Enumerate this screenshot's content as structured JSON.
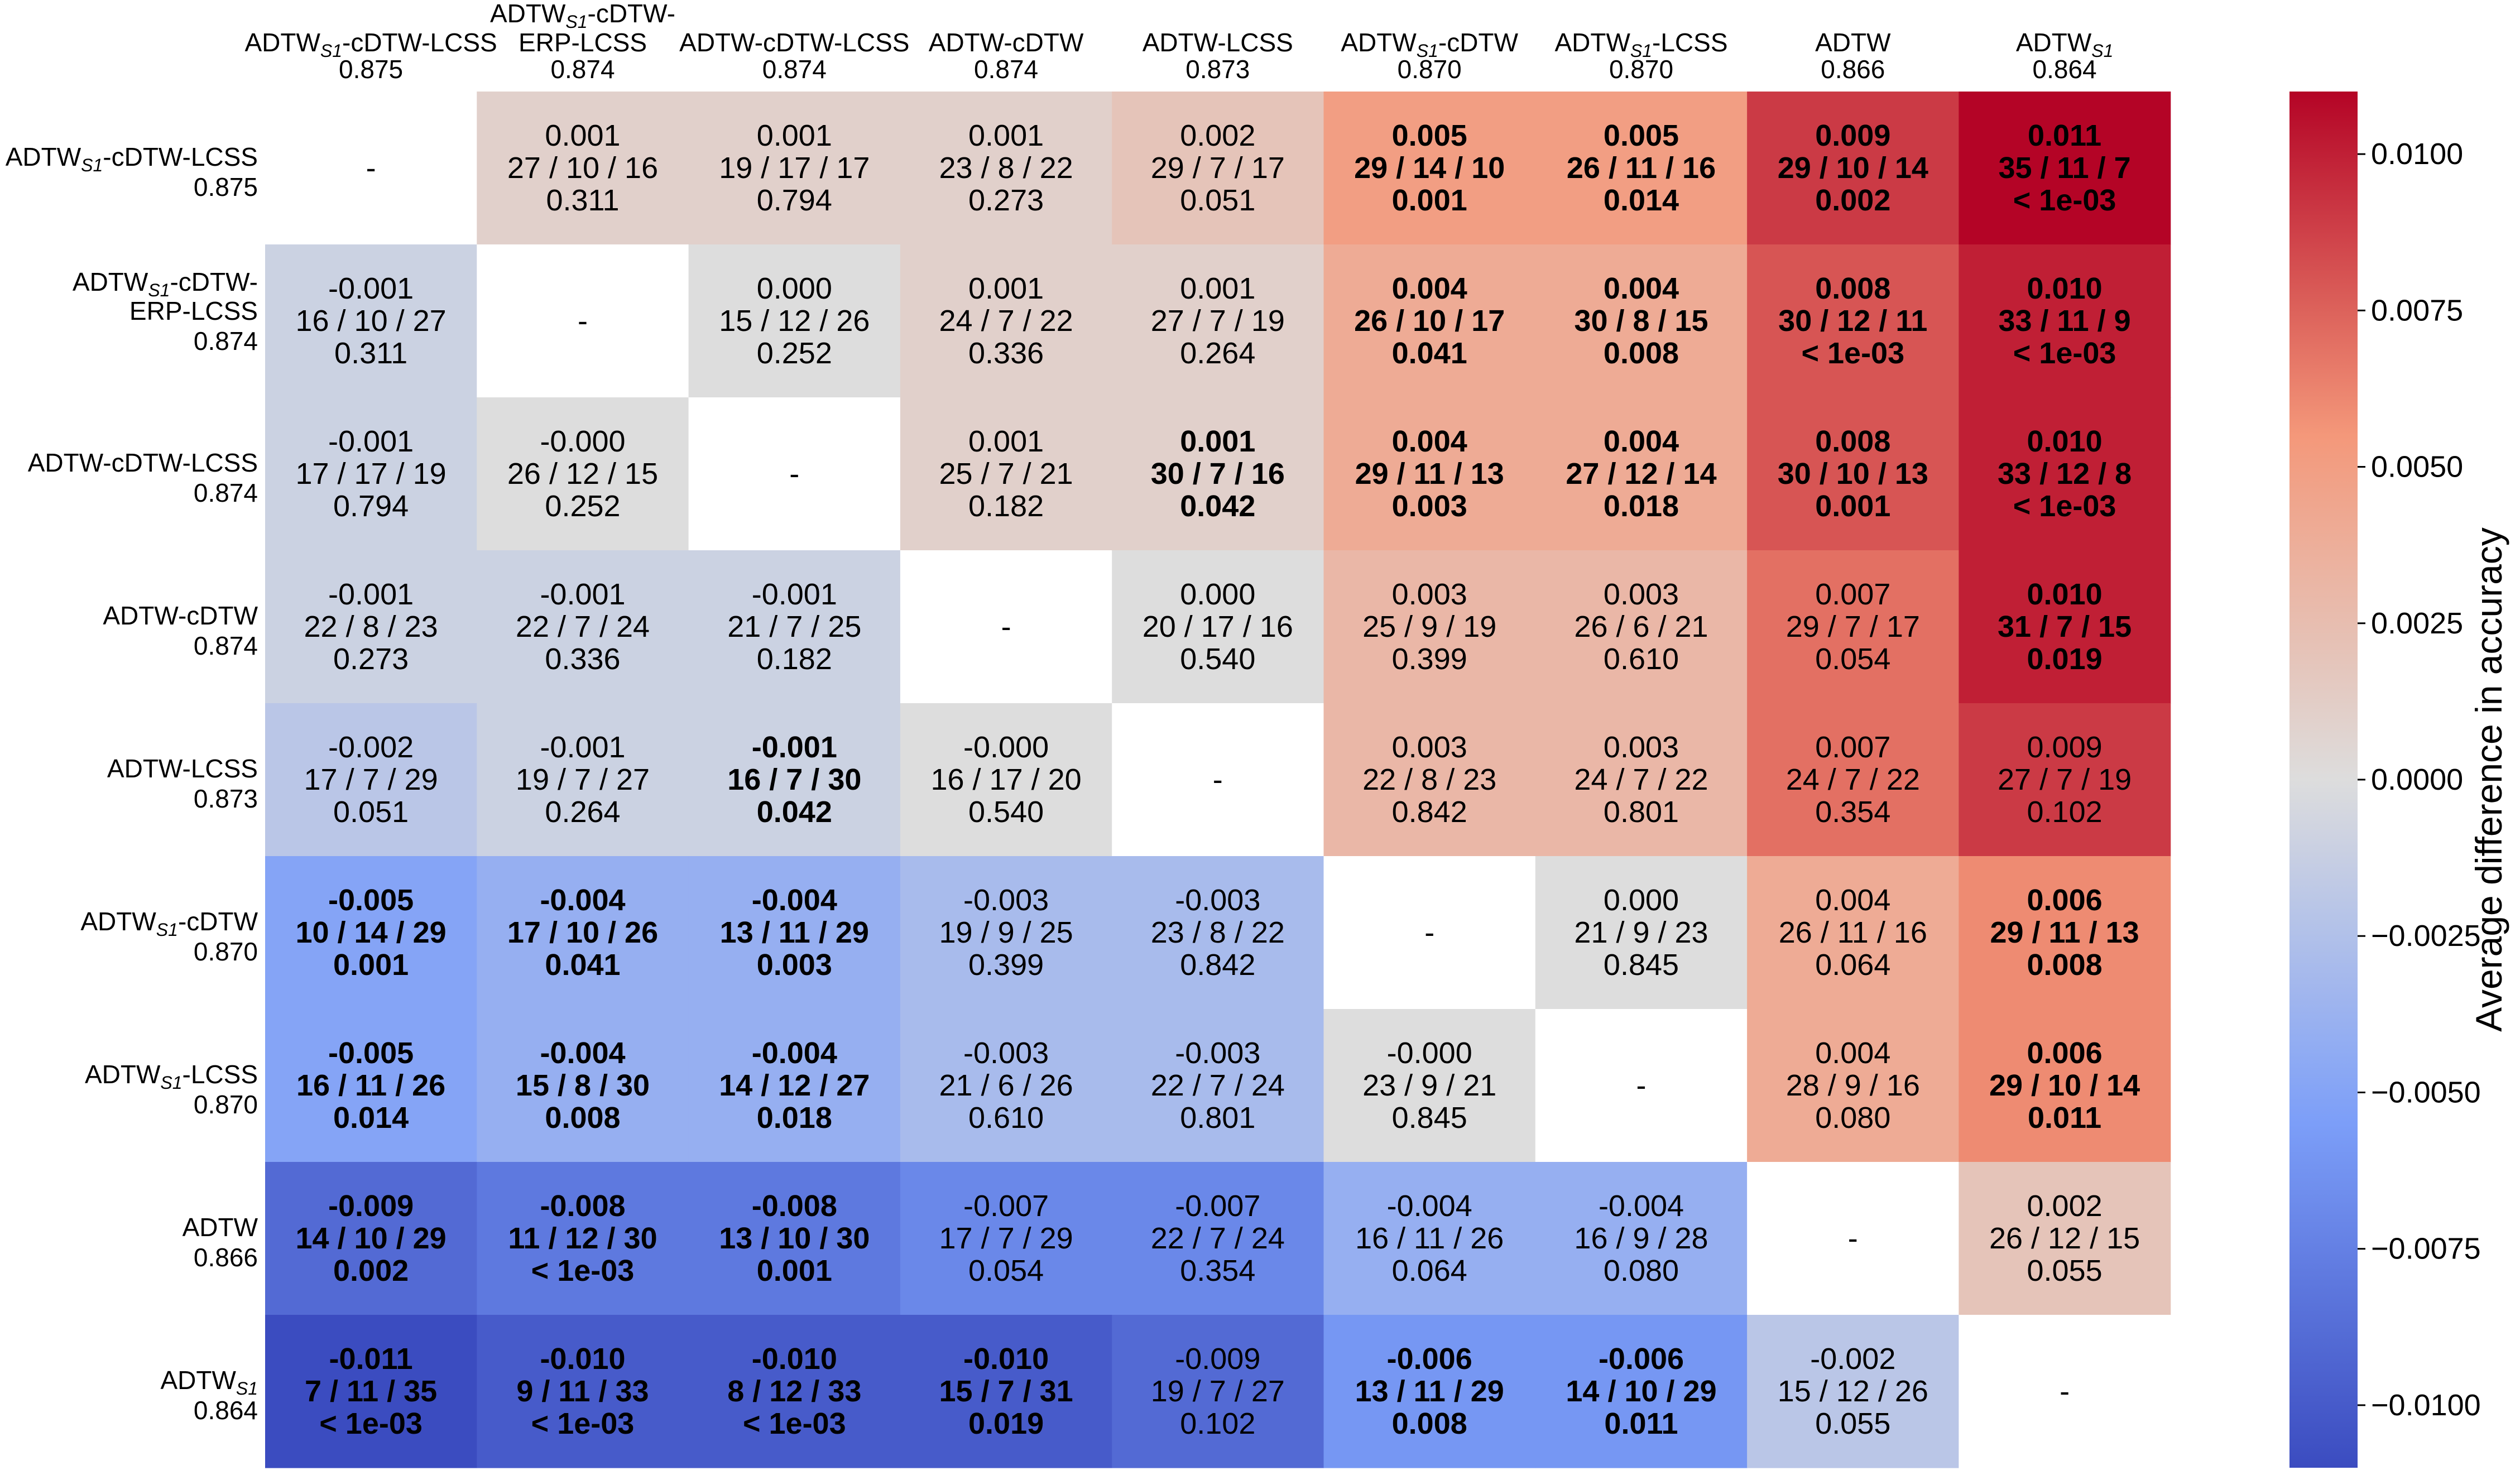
{
  "chart_data": {
    "type": "heatmap",
    "colorbar": {
      "label": "Average difference in accuracy",
      "range": [
        -0.011,
        0.011
      ],
      "ticks": [
        0.01,
        0.0075,
        0.005,
        0.0025,
        0.0,
        -0.0025,
        -0.005,
        -0.0075,
        -0.01
      ],
      "tick_labels": [
        "0.0100",
        "0.0075",
        "0.0050",
        "0.0025",
        "0.0000",
        "−0.0025",
        "−0.0050",
        "−0.0075",
        "−0.0100"
      ],
      "colormap": "coolwarm",
      "colors": {
        "low": "#3b4cc0",
        "mid": "#dddddd",
        "high": "#b40426"
      }
    },
    "columns": [
      {
        "name_lines": [
          [
            "ADTW",
            "S1",
            "-cDTW-LCSS"
          ]
        ],
        "score": "0.875"
      },
      {
        "name_lines": [
          [
            "ADTW",
            "S1",
            "-cDTW-"
          ],
          [
            "ERP-LCSS"
          ]
        ],
        "score": "0.874"
      },
      {
        "name_lines": [
          [
            "ADTW-cDTW-LCSS"
          ]
        ],
        "score": "0.874"
      },
      {
        "name_lines": [
          [
            "ADTW-cDTW"
          ]
        ],
        "score": "0.874"
      },
      {
        "name_lines": [
          [
            "ADTW-LCSS"
          ]
        ],
        "score": "0.873"
      },
      {
        "name_lines": [
          [
            "ADTW",
            "S1",
            "-cDTW"
          ]
        ],
        "score": "0.870"
      },
      {
        "name_lines": [
          [
            "ADTW",
            "S1",
            "-LCSS"
          ]
        ],
        "score": "0.870"
      },
      {
        "name_lines": [
          [
            "ADTW"
          ]
        ],
        "score": "0.866"
      },
      {
        "name_lines": [
          [
            "ADTW",
            "S1",
            ""
          ]
        ],
        "score": "0.864"
      }
    ],
    "rows": [
      {
        "name_lines": [
          [
            "ADTW",
            "S1",
            "-cDTW-LCSS"
          ]
        ],
        "score": "0.875"
      },
      {
        "name_lines": [
          [
            "ADTW",
            "S1",
            "-cDTW-"
          ],
          [
            "ERP-LCSS"
          ]
        ],
        "score": "0.874"
      },
      {
        "name_lines": [
          [
            "ADTW-cDTW-LCSS"
          ]
        ],
        "score": "0.874"
      },
      {
        "name_lines": [
          [
            "ADTW-cDTW"
          ]
        ],
        "score": "0.874"
      },
      {
        "name_lines": [
          [
            "ADTW-LCSS"
          ]
        ],
        "score": "0.873"
      },
      {
        "name_lines": [
          [
            "ADTW",
            "S1",
            "-cDTW"
          ]
        ],
        "score": "0.870"
      },
      {
        "name_lines": [
          [
            "ADTW",
            "S1",
            "-LCSS"
          ]
        ],
        "score": "0.870"
      },
      {
        "name_lines": [
          [
            "ADTW"
          ]
        ],
        "score": "0.866"
      },
      {
        "name_lines": [
          [
            "ADTW",
            "S1",
            ""
          ]
        ],
        "score": "0.864"
      }
    ],
    "cells": [
      [
        {
          "empty": true,
          "text": "-"
        },
        {
          "v": 0.001,
          "lines": [
            "0.001",
            "27 / 10 / 16",
            "0.311"
          ],
          "bold": false
        },
        {
          "v": 0.001,
          "lines": [
            "0.001",
            "19 / 17 / 17",
            "0.794"
          ],
          "bold": false
        },
        {
          "v": 0.001,
          "lines": [
            "0.001",
            "23 / 8 / 22",
            "0.273"
          ],
          "bold": false
        },
        {
          "v": 0.002,
          "lines": [
            "0.002",
            "29 / 7 / 17",
            "0.051"
          ],
          "bold": false
        },
        {
          "v": 0.005,
          "lines": [
            "0.005",
            "29 / 14 / 10",
            "0.001"
          ],
          "bold": true
        },
        {
          "v": 0.005,
          "lines": [
            "0.005",
            "26 / 11 / 16",
            "0.014"
          ],
          "bold": true
        },
        {
          "v": 0.009,
          "lines": [
            "0.009",
            "29 / 10 / 14",
            "0.002"
          ],
          "bold": true
        },
        {
          "v": 0.011,
          "lines": [
            "0.011",
            "35 / 11 / 7",
            "< 1e-03"
          ],
          "bold": true
        }
      ],
      [
        {
          "v": -0.001,
          "lines": [
            "-0.001",
            "16 / 10 / 27",
            "0.311"
          ],
          "bold": false
        },
        {
          "empty": true,
          "text": "-"
        },
        {
          "v": 0.0,
          "lines": [
            "0.000",
            "15 / 12 / 26",
            "0.252"
          ],
          "bold": false
        },
        {
          "v": 0.001,
          "lines": [
            "0.001",
            "24 / 7 / 22",
            "0.336"
          ],
          "bold": false
        },
        {
          "v": 0.001,
          "lines": [
            "0.001",
            "27 / 7 / 19",
            "0.264"
          ],
          "bold": false
        },
        {
          "v": 0.004,
          "lines": [
            "0.004",
            "26 / 10 / 17",
            "0.041"
          ],
          "bold": true
        },
        {
          "v": 0.004,
          "lines": [
            "0.004",
            "30 / 8 / 15",
            "0.008"
          ],
          "bold": true
        },
        {
          "v": 0.008,
          "lines": [
            "0.008",
            "30 / 12 / 11",
            "< 1e-03"
          ],
          "bold": true
        },
        {
          "v": 0.01,
          "lines": [
            "0.010",
            "33 / 11 / 9",
            "< 1e-03"
          ],
          "bold": true
        }
      ],
      [
        {
          "v": -0.001,
          "lines": [
            "-0.001",
            "17 / 17 / 19",
            "0.794"
          ],
          "bold": false
        },
        {
          "v": -0.0,
          "lines": [
            "-0.000",
            "26 / 12 / 15",
            "0.252"
          ],
          "bold": false
        },
        {
          "empty": true,
          "text": "-"
        },
        {
          "v": 0.001,
          "lines": [
            "0.001",
            "25 / 7 / 21",
            "0.182"
          ],
          "bold": false
        },
        {
          "v": 0.001,
          "lines": [
            "0.001",
            "30 / 7 / 16",
            "0.042"
          ],
          "bold": true
        },
        {
          "v": 0.004,
          "lines": [
            "0.004",
            "29 / 11 / 13",
            "0.003"
          ],
          "bold": true
        },
        {
          "v": 0.004,
          "lines": [
            "0.004",
            "27 / 12 / 14",
            "0.018"
          ],
          "bold": true
        },
        {
          "v": 0.008,
          "lines": [
            "0.008",
            "30 / 10 / 13",
            "0.001"
          ],
          "bold": true
        },
        {
          "v": 0.01,
          "lines": [
            "0.010",
            "33 / 12 / 8",
            "< 1e-03"
          ],
          "bold": true
        }
      ],
      [
        {
          "v": -0.001,
          "lines": [
            "-0.001",
            "22 / 8 / 23",
            "0.273"
          ],
          "bold": false
        },
        {
          "v": -0.001,
          "lines": [
            "-0.001",
            "22 / 7 / 24",
            "0.336"
          ],
          "bold": false
        },
        {
          "v": -0.001,
          "lines": [
            "-0.001",
            "21 / 7 / 25",
            "0.182"
          ],
          "bold": false
        },
        {
          "empty": true,
          "text": "-"
        },
        {
          "v": 0.0,
          "lines": [
            "0.000",
            "20 / 17 / 16",
            "0.540"
          ],
          "bold": false
        },
        {
          "v": 0.003,
          "lines": [
            "0.003",
            "25 / 9 / 19",
            "0.399"
          ],
          "bold": false
        },
        {
          "v": 0.003,
          "lines": [
            "0.003",
            "26 / 6 / 21",
            "0.610"
          ],
          "bold": false
        },
        {
          "v": 0.007,
          "lines": [
            "0.007",
            "29 / 7 / 17",
            "0.054"
          ],
          "bold": false
        },
        {
          "v": 0.01,
          "lines": [
            "0.010",
            "31 / 7 / 15",
            "0.019"
          ],
          "bold": true
        }
      ],
      [
        {
          "v": -0.002,
          "lines": [
            "-0.002",
            "17 / 7 / 29",
            "0.051"
          ],
          "bold": false
        },
        {
          "v": -0.001,
          "lines": [
            "-0.001",
            "19 / 7 / 27",
            "0.264"
          ],
          "bold": false
        },
        {
          "v": -0.001,
          "lines": [
            "-0.001",
            "16 / 7 / 30",
            "0.042"
          ],
          "bold": true
        },
        {
          "v": -0.0,
          "lines": [
            "-0.000",
            "16 / 17 / 20",
            "0.540"
          ],
          "bold": false
        },
        {
          "empty": true,
          "text": "-"
        },
        {
          "v": 0.003,
          "lines": [
            "0.003",
            "22 / 8 / 23",
            "0.842"
          ],
          "bold": false
        },
        {
          "v": 0.003,
          "lines": [
            "0.003",
            "24 / 7 / 22",
            "0.801"
          ],
          "bold": false
        },
        {
          "v": 0.007,
          "lines": [
            "0.007",
            "24 / 7 / 22",
            "0.354"
          ],
          "bold": false
        },
        {
          "v": 0.009,
          "lines": [
            "0.009",
            "27 / 7 / 19",
            "0.102"
          ],
          "bold": false
        }
      ],
      [
        {
          "v": -0.005,
          "lines": [
            "-0.005",
            "10 / 14 / 29",
            "0.001"
          ],
          "bold": true
        },
        {
          "v": -0.004,
          "lines": [
            "-0.004",
            "17 / 10 / 26",
            "0.041"
          ],
          "bold": true
        },
        {
          "v": -0.004,
          "lines": [
            "-0.004",
            "13 / 11 / 29",
            "0.003"
          ],
          "bold": true
        },
        {
          "v": -0.003,
          "lines": [
            "-0.003",
            "19 / 9 / 25",
            "0.399"
          ],
          "bold": false
        },
        {
          "v": -0.003,
          "lines": [
            "-0.003",
            "23 / 8 / 22",
            "0.842"
          ],
          "bold": false
        },
        {
          "empty": true,
          "text": "-"
        },
        {
          "v": 0.0,
          "lines": [
            "0.000",
            "21 / 9 / 23",
            "0.845"
          ],
          "bold": false
        },
        {
          "v": 0.004,
          "lines": [
            "0.004",
            "26 / 11 / 16",
            "0.064"
          ],
          "bold": false
        },
        {
          "v": 0.006,
          "lines": [
            "0.006",
            "29 / 11 / 13",
            "0.008"
          ],
          "bold": true
        }
      ],
      [
        {
          "v": -0.005,
          "lines": [
            "-0.005",
            "16 / 11 / 26",
            "0.014"
          ],
          "bold": true
        },
        {
          "v": -0.004,
          "lines": [
            "-0.004",
            "15 / 8 / 30",
            "0.008"
          ],
          "bold": true
        },
        {
          "v": -0.004,
          "lines": [
            "-0.004",
            "14 / 12 / 27",
            "0.018"
          ],
          "bold": true
        },
        {
          "v": -0.003,
          "lines": [
            "-0.003",
            "21 / 6 / 26",
            "0.610"
          ],
          "bold": false
        },
        {
          "v": -0.003,
          "lines": [
            "-0.003",
            "22 / 7 / 24",
            "0.801"
          ],
          "bold": false
        },
        {
          "v": -0.0,
          "lines": [
            "-0.000",
            "23 / 9 / 21",
            "0.845"
          ],
          "bold": false
        },
        {
          "empty": true,
          "text": "-"
        },
        {
          "v": 0.004,
          "lines": [
            "0.004",
            "28 / 9 / 16",
            "0.080"
          ],
          "bold": false
        },
        {
          "v": 0.006,
          "lines": [
            "0.006",
            "29 / 10 / 14",
            "0.011"
          ],
          "bold": true
        }
      ],
      [
        {
          "v": -0.009,
          "lines": [
            "-0.009",
            "14 / 10 / 29",
            "0.002"
          ],
          "bold": true
        },
        {
          "v": -0.008,
          "lines": [
            "-0.008",
            "11 / 12 / 30",
            "< 1e-03"
          ],
          "bold": true
        },
        {
          "v": -0.008,
          "lines": [
            "-0.008",
            "13 / 10 / 30",
            "0.001"
          ],
          "bold": true
        },
        {
          "v": -0.007,
          "lines": [
            "-0.007",
            "17 / 7 / 29",
            "0.054"
          ],
          "bold": false
        },
        {
          "v": -0.007,
          "lines": [
            "-0.007",
            "22 / 7 / 24",
            "0.354"
          ],
          "bold": false
        },
        {
          "v": -0.004,
          "lines": [
            "-0.004",
            "16 / 11 / 26",
            "0.064"
          ],
          "bold": false
        },
        {
          "v": -0.004,
          "lines": [
            "-0.004",
            "16 / 9 / 28",
            "0.080"
          ],
          "bold": false
        },
        {
          "empty": true,
          "text": "-"
        },
        {
          "v": 0.002,
          "lines": [
            "0.002",
            "26 / 12 / 15",
            "0.055"
          ],
          "bold": false
        }
      ],
      [
        {
          "v": -0.011,
          "lines": [
            "-0.011",
            "7 / 11 / 35",
            "< 1e-03"
          ],
          "bold": true
        },
        {
          "v": -0.01,
          "lines": [
            "-0.010",
            "9 / 11 / 33",
            "< 1e-03"
          ],
          "bold": true
        },
        {
          "v": -0.01,
          "lines": [
            "-0.010",
            "8 / 12 / 33",
            "< 1e-03"
          ],
          "bold": true
        },
        {
          "v": -0.01,
          "lines": [
            "-0.010",
            "15 / 7 / 31",
            "0.019"
          ],
          "bold": true
        },
        {
          "v": -0.009,
          "lines": [
            "-0.009",
            "19 / 7 / 27",
            "0.102"
          ],
          "bold": false
        },
        {
          "v": -0.006,
          "lines": [
            "-0.006",
            "13 / 11 / 29",
            "0.008"
          ],
          "bold": true
        },
        {
          "v": -0.006,
          "lines": [
            "-0.006",
            "14 / 10 / 29",
            "0.011"
          ],
          "bold": true
        },
        {
          "v": -0.002,
          "lines": [
            "-0.002",
            "15 / 12 / 26",
            "0.055"
          ],
          "bold": false
        },
        {
          "empty": true,
          "text": "-"
        }
      ]
    ]
  }
}
